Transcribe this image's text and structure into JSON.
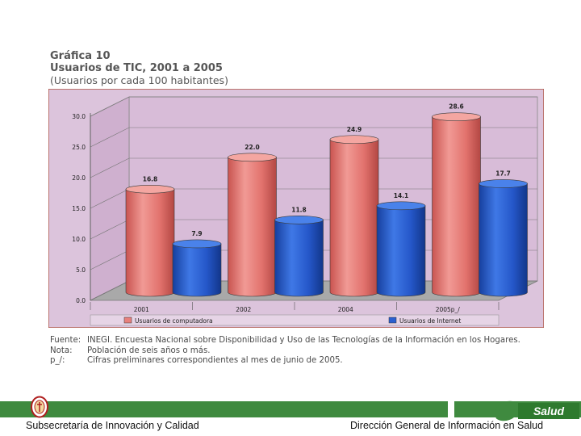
{
  "header": {
    "line1": "Gráfica 10",
    "line2": "Usuarios de TIC, 2001 a 2005",
    "line3": "(Usuarios por cada 100 habitantes)"
  },
  "chart_data": {
    "type": "bar",
    "title": "Usuarios de TIC, 2001 a 2005",
    "categories": [
      "2001",
      "2002",
      "2004",
      "2005p_/"
    ],
    "series": [
      {
        "name": "Usuarios de computadora",
        "values": [
          16.8,
          22.0,
          24.9,
          28.6
        ],
        "value_labels": [
          "16.8",
          "22.0",
          "24.9",
          "28.6"
        ],
        "color": "#e8807c"
      },
      {
        "name": "Usuarios de Internet",
        "values": [
          7.9,
          11.8,
          14.1,
          17.7
        ],
        "value_labels": [
          "7.9",
          "11.8",
          "14.1",
          "17.7"
        ],
        "color": "#2a5fd0"
      }
    ],
    "y_ticks": [
      "30.0",
      "25.0",
      "20.0",
      "15.0",
      "10.0",
      "5.0",
      "0.0"
    ],
    "ylim": [
      0,
      30
    ],
    "legend_position": "bottom",
    "background": "#dcc4dc"
  },
  "notes": [
    {
      "key": "Fuente:",
      "text": "INEGI. Encuesta Nacional sobre Disponibilidad y Uso de las Tecnologías de la Información en los Hogares."
    },
    {
      "key": "Nota:",
      "text": "Población de seis años o más."
    },
    {
      "key": "p_/:",
      "text": "Cifras preliminares correspondientes al mes de junio de 2005."
    }
  ],
  "footer": {
    "left": "Subsecretaría de Innovación y Calidad",
    "right": "Dirección General de Información en Salud",
    "logo_text": "Salud"
  },
  "colors": {
    "accent_green": "#3f8a3f",
    "chart_frame": "#b05a4a"
  }
}
